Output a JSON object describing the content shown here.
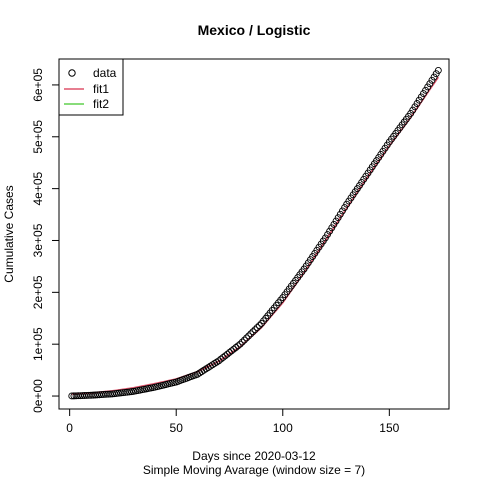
{
  "chart_data": {
    "type": "scatter",
    "title": "Mexico / Logistic",
    "xlabel": "Days since 2020-03-12",
    "xlabel2": "Simple Moving Avarage (window size = 7)",
    "ylabel": "Cumulative Cases",
    "xlim": [
      -5,
      178
    ],
    "ylim": [
      -25000,
      650000
    ],
    "x_ticks": [
      0,
      50,
      100,
      150
    ],
    "x_tick_labels": [
      "0",
      "50",
      "100",
      "150"
    ],
    "y_ticks": [
      0,
      100000,
      200000,
      300000,
      400000,
      500000,
      600000
    ],
    "y_tick_labels": [
      "0e+00",
      "1e+05",
      "2e+05",
      "3e+05",
      "4e+05",
      "5e+05",
      "6e+05"
    ],
    "x_start": 1,
    "x_end": 173,
    "series": [
      {
        "name": "data",
        "kind": "points",
        "color": "#000000",
        "x": [
          0,
          10,
          20,
          30,
          40,
          50,
          60,
          70,
          80,
          90,
          100,
          110,
          120,
          130,
          140,
          150,
          160,
          173
        ],
        "y": [
          0,
          1500,
          4000,
          9000,
          17000,
          27000,
          42000,
          68000,
          100000,
          140000,
          190000,
          245000,
          305000,
          370000,
          430000,
          490000,
          545000,
          628000
        ]
      },
      {
        "name": "fit1",
        "kind": "line",
        "color": "#DF536B",
        "x": [
          0,
          10,
          20,
          30,
          40,
          50,
          60,
          70,
          80,
          90,
          100,
          110,
          120,
          130,
          140,
          150,
          160,
          173
        ],
        "y": [
          3500,
          6000,
          10000,
          16000,
          24000,
          33000,
          47000,
          67000,
          95000,
          132000,
          180000,
          238000,
          300000,
          362000,
          424000,
          482000,
          537000,
          615000
        ]
      },
      {
        "name": "fit2",
        "kind": "line",
        "color": "#61D04F",
        "x": [],
        "y": []
      }
    ],
    "legend": {
      "position": "top-left",
      "entries": [
        {
          "label": "data",
          "symbol": "circle",
          "color": "#000000"
        },
        {
          "label": "fit1",
          "symbol": "line",
          "color": "#DF536B"
        },
        {
          "label": "fit2",
          "symbol": "line",
          "color": "#61D04F"
        }
      ]
    }
  }
}
